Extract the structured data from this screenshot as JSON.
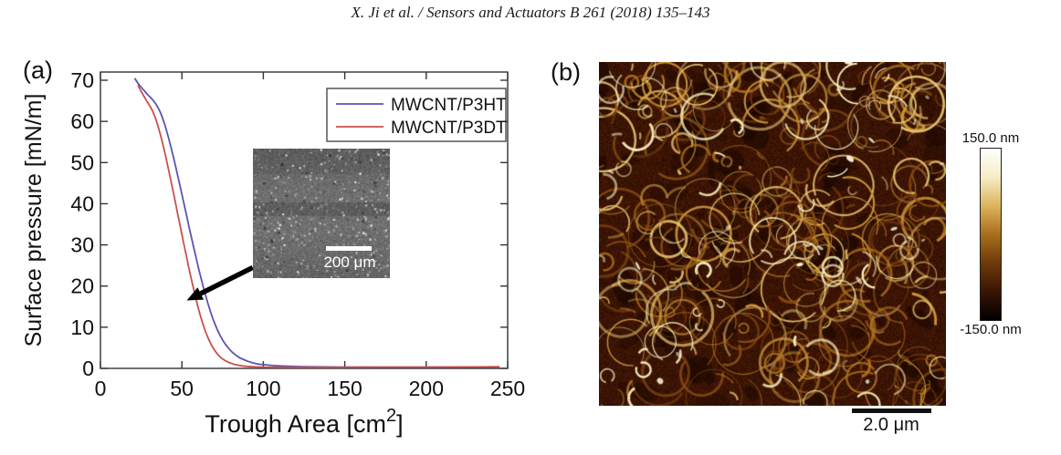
{
  "header": {
    "citation": "X. Ji et al. / Sensors and Actuators B 261 (2018) 135–143"
  },
  "panel_a": {
    "label": "(a)",
    "inset": {
      "scalebar_label": "200 μm"
    }
  },
  "panel_b": {
    "label": "(b)",
    "colorbar": {
      "top_label": "150.0 nm",
      "bottom_label": "-150.0 nm",
      "gradient": [
        "#ffffff",
        "#f6ecc6",
        "#ddb45c",
        "#a96e1c",
        "#6e3a0a",
        "#3a1504",
        "#000000"
      ]
    },
    "scalebar_label": "2.0 μm",
    "palette": {
      "background": "#351102",
      "fiber_dark": "#8a4c12",
      "fiber_mid1": "#b5751e",
      "fiber_mid2": "#d49c3c",
      "fiber_bright": "#ecc873",
      "highlight": "#fdf6dc"
    }
  },
  "chart_data": {
    "type": "line",
    "title": "",
    "xlabel": {
      "pre": "Trough Area [cm",
      "sup": "2",
      "post": "]"
    },
    "ylabel": "Surface pressure [mN/m]",
    "xlim": [
      0,
      250
    ],
    "ylim": [
      0,
      70
    ],
    "xticks": [
      0,
      50,
      100,
      150,
      200,
      250
    ],
    "yticks": [
      0,
      10,
      20,
      30,
      40,
      50,
      60,
      70
    ],
    "grid": false,
    "legend_position": "top-right",
    "axis_color": "#333333",
    "series": [
      {
        "name": "MWCNT/P3HT",
        "color": "#5a55b0",
        "x": [
          21,
          23,
          25,
          27,
          29,
          31,
          33,
          35,
          37,
          39,
          41,
          43,
          45,
          47,
          49,
          51,
          53,
          55,
          57,
          59,
          61,
          63,
          65,
          67,
          69,
          72,
          75,
          78,
          81,
          85,
          90,
          95,
          100,
          110,
          125,
          150,
          180,
          210,
          245
        ],
        "y": [
          70.5,
          69.3,
          68.3,
          67.4,
          66.5,
          65.7,
          64.8,
          63.6,
          62.0,
          59.8,
          57.2,
          54.2,
          51.0,
          47.6,
          44.1,
          40.5,
          36.9,
          33.3,
          29.8,
          26.4,
          23.1,
          20.0,
          17.1,
          14.5,
          12.1,
          9.2,
          6.9,
          5.2,
          3.9,
          2.7,
          1.8,
          1.2,
          0.9,
          0.6,
          0.4,
          0.3,
          0.3,
          0.3,
          0.3
        ]
      },
      {
        "name": "MWCNT/P3DT",
        "color": "#c85050",
        "x": [
          23,
          25,
          27,
          29,
          31,
          33,
          35,
          37,
          39,
          41,
          43,
          45,
          47,
          49,
          51,
          53,
          55,
          57,
          59,
          61,
          63,
          65,
          68,
          71,
          74,
          78,
          82,
          87,
          93,
          100,
          115,
          140,
          170,
          200,
          230,
          245
        ],
        "y": [
          68.8,
          67.3,
          65.9,
          64.6,
          63.3,
          61.6,
          59.3,
          56.5,
          53.3,
          49.8,
          46.1,
          42.3,
          38.4,
          34.5,
          30.6,
          26.8,
          23.1,
          19.6,
          16.3,
          13.3,
          10.7,
          8.4,
          5.8,
          3.9,
          2.6,
          1.6,
          1.0,
          0.6,
          0.4,
          0.3,
          0.25,
          0.25,
          0.3,
          0.3,
          0.35,
          0.4
        ]
      }
    ],
    "annotation_arrow": {
      "from": [
        93.5,
        24.5
      ],
      "to": [
        53,
        16.5
      ],
      "color": "#000000"
    }
  }
}
